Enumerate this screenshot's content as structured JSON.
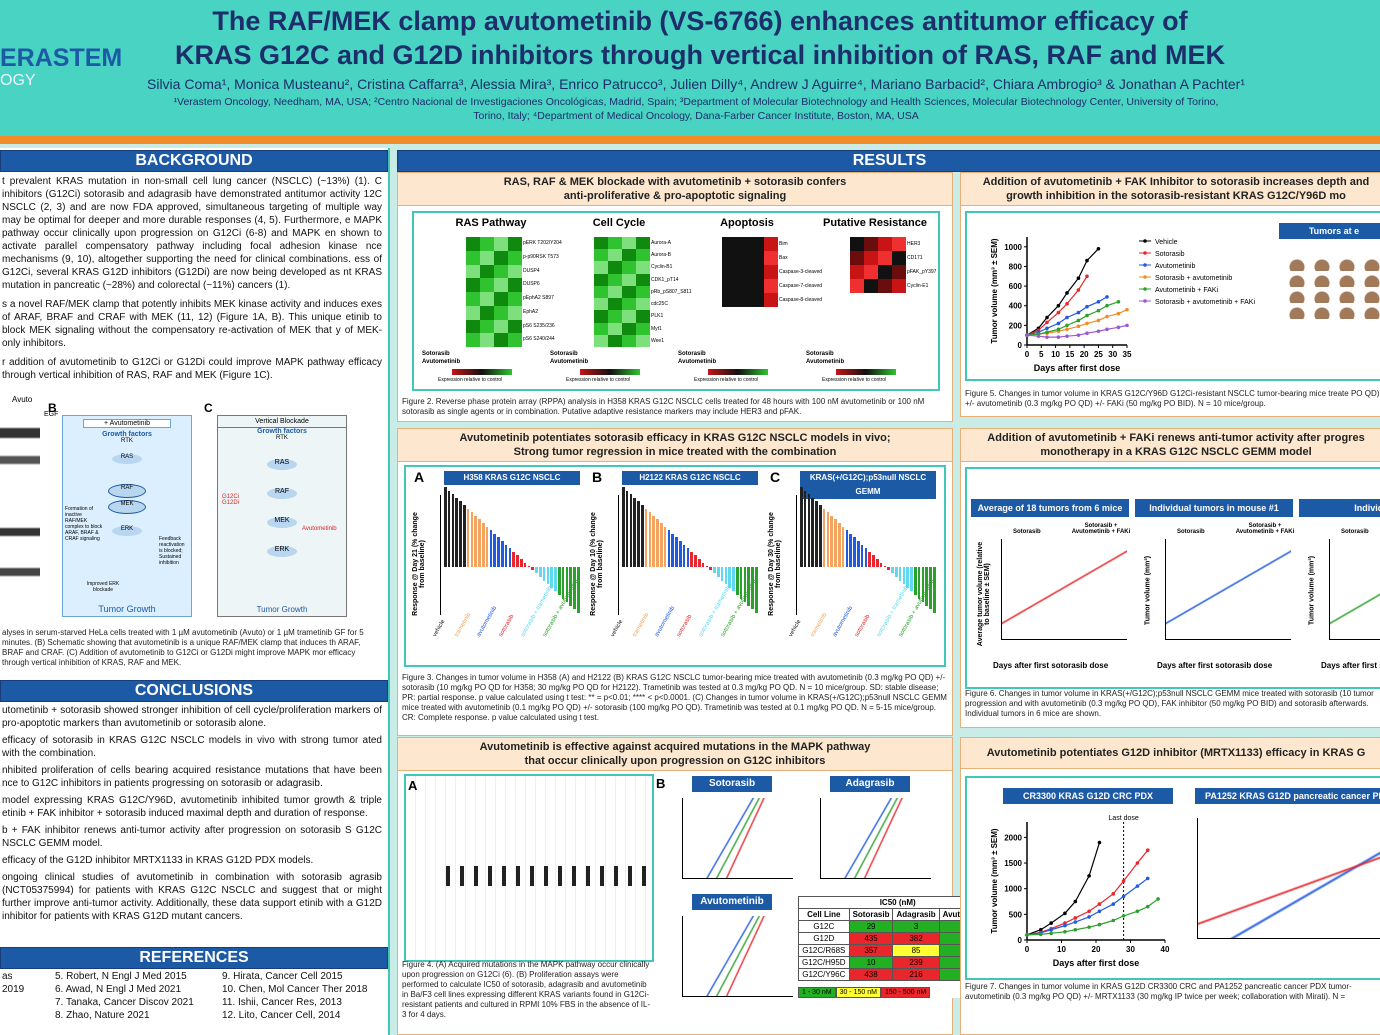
{
  "header": {
    "logo_1": "ERASTEM",
    "logo_2": "OGY",
    "title_1": "The RAF/MEK clamp avutometinib (VS-6766) enhances antitumor efficacy of",
    "title_2": "KRAS G12C and G12D inhibitors through vertical inhibition of RAS, RAF and MEK",
    "authors": "Silvia Coma¹, Monica Musteanu², Cristina Caffarra³, Alessia Mira³, Enrico Patrucco³, Julien Dilly⁴, Andrew J Aguirre⁴, Mariano Barbacid², Chiara Ambrogio³ & Jonathan A Pachter¹",
    "affiliations_1": "¹Verastem Oncology, Needham, MA, USA; ²Centro Nacional de Investigaciones Oncológicas, Madrid, Spain; ³Department of Molecular Biotechnology and Health Sciences, Molecular Biotechnology Center, University of Torino,",
    "affiliations_2": "Torino, Italy; ⁴Department of Medical Oncology, Dana-Farber Cancer Institute, Boston, MA, USA"
  },
  "background": {
    "heading": "BACKGROUND",
    "paragraphs": [
      "t prevalent KRAS mutation in non-small cell lung cancer (NSCLC) (~13%) (1). C inhibitors (G12Ci) sotorasib and adagrasib have demonstrated antitumor activity 12C NSCLC (2, 3) and are now FDA approved, simultaneous targeting of multiple way may be optimal for deeper and more durable responses (4, 5). Furthermore, e MAPK pathway occur clinically upon progression on G12Ci (6-8) and MAPK en shown to activate parallel compensatory pathway including focal adhesion kinase nce mechanisms (9, 10), altogether supporting the need for clinical combinations. ess of G12Ci, several KRAS G12D inhibitors (G12Di) are now being developed as nt KRAS mutation in pancreatic (~28%) and colorectal (~11%) cancers (1).",
      "s a novel RAF/MEK clamp that potently inhibits MEK kinase activity and induces exes of ARAF, BRAF and CRAF with MEK (11, 12) (Figure 1A, B). This unique etinib to block MEK signaling without the compensatory re-activation of MEK that y of MEK-only inhibitors.",
      "r addition of avutometinib to G12Ci or G12Di could improve MAPK pathway efficacy through vertical inhibition of RAS, RAF and MEK (Figure 1C)."
    ]
  },
  "figure1": {
    "label_b": "B",
    "label_c": "C",
    "avuto_col": "Avuto",
    "egf": "EGF",
    "b_title": "+ Avutometinib",
    "growth_factors": "Growth factors",
    "rtk": "RTK",
    "ras": "RAS",
    "raf": "RAF",
    "mek": "MEK",
    "erk": "ERK",
    "complex": "Formation of inactive RAF/MEK complex to block ARAF, BRAF & CRAF signaling",
    "feedback": "Feedback reactivation is blocked; Sustained inhibition",
    "improved": "Improved ERK blockade",
    "tumor_growth": "Tumor Growth",
    "c_title": "Vertical Blockade",
    "inhibitors": "G12Ci G12Di",
    "avutometinib": "Avutometinib",
    "caption": "alyses in serum-starved HeLa cells treated with 1 µM avutometinib (Avuto) or 1 µM trametinib GF for 5 minutes. (B) Schematic showing that avutometinib is a unique RAF/MEK clamp that induces th ARAF, BRAF and CRAF. (C) Addition of avutometinib to G12Ci or G12Di might improve MAPK mor efficacy through vertical inhibition of KRAS, RAF and MEK."
  },
  "conclusions": {
    "heading": "CONCLUSIONS",
    "items": [
      "utometinib + sotorasib showed stronger inhibition of cell cycle/proliferation markers of pro-apoptotic markers than avutometinib or sotorasib alone.",
      "efficacy of sotorasib in KRAS G12C NSCLC models in vivo with strong tumor ated with the combination.",
      "nhibited proliferation of cells bearing acquired resistance mutations that have been nce to G12C inhibitors in patients progressing on sotorasib or adagrasib.",
      "model expressing KRAS G12C/Y96D, avutometinib inhibited tumor growth & triple etinib + FAK inhibitor + sotorasib induced maximal depth and duration of response.",
      "b + FAK inhibitor renews anti-tumor activity after progression on sotorasib S G12C NSCLC GEMM model.",
      "efficacy of the G12D inhibitor MRTX1133 in KRAS G12D PDX models.",
      "ongoing clinical studies of avutometinib in combination with sotorasib agrasib (NCT05375994) for patients with KRAS G12C NSCLC and suggest that or might further improve anti-tumor activity. Additionally, these data support etinib with a G12D inhibitor for patients with KRAS G12D mutant cancers."
    ]
  },
  "references": {
    "heading": "REFERENCES",
    "col_1": [
      "as",
      "2019"
    ],
    "col_2": [
      "5. Robert, N Engl J Med 2015",
      "6. Awad, N Engl J Med 2021",
      "7. Tanaka, Cancer Discov 2021",
      "8. Zhao, Nature 2021"
    ],
    "col_3": [
      "9. Hirata, Cancer Cell 2015",
      "10. Chen, Mol Cancer Ther 2018",
      "11. Ishii, Cancer Res, 2013",
      "12. Lito, Cancer Cell, 2014"
    ]
  },
  "results": {
    "heading": "RESULTS"
  },
  "fig2": {
    "title_1": "RAS, RAF & MEK blockade with avutometinib + sotorasib confers",
    "title_2": "anti-proliferative & pro-apoptotic signaling",
    "panels": [
      {
        "name": "RAS Pathway",
        "markers": [
          "pERK T202/Y204",
          "p-p90RSK T573",
          "DUSP4",
          "DUSP6",
          "pEphA2 S897",
          "EphA2",
          "pS6 S235/236",
          "pS6 S240/244"
        ]
      },
      {
        "name": "Cell Cycle",
        "markers": [
          "Aurora-A",
          "Aurora-B",
          "Cyclin-B1",
          "CDK1_pT14",
          "pRb_pS807_S811",
          "cdc25C",
          "PLK1",
          "Myt1",
          "Wee1"
        ]
      },
      {
        "name": "Apoptosis",
        "markers": [
          "Bim",
          "Bax",
          "Caspase-3-cleaved",
          "Caspase-7-cleaved",
          "Caspase-8-cleaved"
        ]
      },
      {
        "name": "Putative Resistance",
        "markers": [
          "HER3",
          "CD171",
          "pFAK_pY397",
          "Cyclin-E1"
        ]
      }
    ],
    "row_sotorasib": "Sotorasib",
    "row_avutometinib": "Avutometinib",
    "scale_label": "Expression relative to control",
    "caption": "Figure 2. Reverse phase protein array (RPPA) analysis in H358 KRAS G12C NSCLC cells treated for 48 hours with 100 nM avutometinib or 100 nM sotorasib as single agents or in combination. Putative adaptive resistance markers may include HER3 and pFAK."
  },
  "fig3": {
    "title_1": "Avutometinib potentiates sotorasib efficacy in KRAS G12C NSCLC models in vivo;",
    "title_2": "Strong tumor regression in mice treated with the combination",
    "panels": [
      {
        "letter": "A",
        "name": "H358 KRAS G12C NSCLC",
        "ylabel": "Response @ Day 21 (% change from baseline)"
      },
      {
        "letter": "B",
        "name": "H2122 KRAS G12C NSCLC",
        "ylabel": "Response @ Day 10 (% change from baseline)"
      },
      {
        "letter": "C",
        "name": "KRAS(+/G12C);p53null NSCLC GEMM",
        "ylabel": "Response @ Day 30 (% change from baseline)"
      }
    ],
    "groups": [
      "vehicle",
      "trametinib",
      "avutometinib",
      "sotorasib",
      "sotorasib + trametinib",
      "sotorasib + avutometinib"
    ],
    "caption": "Figure 3. Changes in tumor volume in H358 (A) and H2122 (B) KRAS G12C NSCLC tumor-bearing mice treated with avutometinib (0.3 mg/kg PO QD) +/- sotorasib (10 mg/kg PO QD for H358; 30 mg/kg PO QD for H2122). Trametinib was tested at 0.3 mg/kg PO QD. N = 10 mice/group. SD: stable disease; PR: partial response. p value calculated using t test: ** = p<0.01; **** < p<0.0001. (C) Changes in tumor volume in KRAS(+/G12C);p53null NSCLC GEMM mice treated with avutometinib (0.1 mg/kg PO QD) +/- sotorasib (100 mg/kg PO QD). Trametinib was tested at 0.1 mg/kg PO QD. N = 5-15 mice/group. CR: Complete response. p value calculated using t test."
  },
  "fig4": {
    "title_1": "Avutometinib is effective against acquired mutations in the MAPK pathway",
    "title_2": "that occur clinically upon progression on G12C inhibitors",
    "letter_a": "A",
    "letter_b": "B",
    "drugs": [
      "Sotorasib",
      "Adagrasib",
      "Avutometinib"
    ],
    "ic50": {
      "title": "IC50 (nM)",
      "header": [
        "Cell Line",
        "Sotorasib",
        "Adagrasib",
        "Avutometinib"
      ],
      "rows": [
        [
          "G12C",
          29,
          3,
          14
        ],
        [
          "G12D",
          435,
          382,
          7
        ],
        [
          "G12C/R68S",
          357,
          85,
          13
        ],
        [
          "G12C/H95D",
          10,
          239,
          10
        ],
        [
          "G12C/Y96C",
          438,
          216,
          4
        ]
      ],
      "legend": [
        "1 - 30 nM",
        "30 - 150 nM",
        "150 - 500 nM"
      ]
    },
    "caption": "Figure 4. (A) Acquired mutations in the MAPK pathway occur clinically upon progression on G12Ci (6). (B) Proliferation assays were performed to calculate IC50 of sotorasib, adagrasib and avutometinib in Ba/F3 cell lines expressing different KRAS variants found in G12Ci-resistant patients and cultured in RPMI 10% FBS in the absence of IL-3 for 4 days."
  },
  "fig5": {
    "title_1": "Addition of avutometinib + FAK Inhibitor to sotorasib increases depth and",
    "title_2": "growth inhibition in the sotorasib-resistant KRAS G12C/Y96D mo",
    "tumors_title": "Tumors at e",
    "chart": {
      "type": "line",
      "xlabel": "Days after first dose",
      "ylabel": "Tumor volume (mm³ ± SEM)",
      "x": [
        0,
        4,
        7,
        11,
        14,
        18,
        21,
        25,
        28,
        32,
        35
      ],
      "xlim": [
        0,
        35
      ],
      "xticks": [
        0,
        5,
        10,
        15,
        20,
        25,
        30,
        35
      ],
      "ylim": [
        0,
        1100
      ],
      "yticks": [
        0,
        200,
        400,
        600,
        800,
        1000
      ],
      "series": [
        {
          "name": "Vehicle",
          "color": "#000000",
          "values": [
            100,
            170,
            280,
            400,
            530,
            680,
            860,
            980,
            null,
            null,
            null
          ]
        },
        {
          "name": "Sotorasib",
          "color": "#e8262b",
          "values": [
            100,
            150,
            230,
            330,
            420,
            560,
            700,
            null,
            null,
            null,
            null
          ]
        },
        {
          "name": "Avutometinib",
          "color": "#1f5ae0",
          "values": [
            100,
            130,
            170,
            220,
            280,
            330,
            390,
            440,
            490,
            null,
            null
          ]
        },
        {
          "name": "Sotorasib + avutometinib",
          "color": "#f28c28",
          "values": [
            100,
            110,
            120,
            140,
            160,
            190,
            220,
            250,
            290,
            320,
            360
          ]
        },
        {
          "name": "Avutometinib + FAKi",
          "color": "#2ca02c",
          "values": [
            100,
            110,
            130,
            160,
            200,
            250,
            300,
            350,
            400,
            440,
            null
          ]
        },
        {
          "name": "Sotorasib + avutometinib + FAKi",
          "color": "#9b59d0",
          "values": [
            100,
            90,
            80,
            80,
            90,
            100,
            120,
            140,
            160,
            180,
            200
          ]
        }
      ]
    },
    "caption": "Figure 5. Changes in tumor volume in KRAS G12C/Y96D G12Ci-resistant NSCLC tumor-bearing mice treate PO QD) +/- avutometinib (0.3 mg/kg PO QD) +/- FAKi (50 mg/kg PO BID). N = 10 mice/group."
  },
  "fig6": {
    "title_1": "Addition of avutometinib + FAKi renews anti-tumor activity after progres",
    "title_2": "monotherapy in a KRAS G12C NSCLC GEMM model",
    "panels": [
      {
        "name": "Average of 18 tumors from 6 mice",
        "ylabel": "Average tumor volume (relative to baseline ± SEM)"
      },
      {
        "name": "Individual tumors in mouse #1",
        "ylabel": "Tumor volume (mm³)"
      },
      {
        "name": "Individual t",
        "ylabel": "Tumor volume (mm³)"
      }
    ],
    "phase_1": "Sotorasib",
    "phase_2": "Sotorasib + Avutometinib + FAKi",
    "xlabel": "Days after first sotorasib dose",
    "caption": "Figure 6. Changes in tumor volume in KRAS(+/G12C);p53null NSCLC GEMM mice treated with sotorasib (10 tumor progression and with avutometinib (0.3 mg/kg PO QD), FAK inhibitor (50 mg/kg PO BID) and sotorasib afterwards. Individual tumors in 6 mice are shown."
  },
  "fig7": {
    "title": "Avutometinib potentiates G12D inhibitor (MRTX1133) efficacy in KRAS G",
    "panel_1": "CR3300 KRAS G12D CRC PDX",
    "panel_2": "PA1252 KRAS G12D pancreatic cancer PD",
    "chart": {
      "type": "line",
      "xlabel": "Days after first dose",
      "ylabel": "Tumor volume (mm³ ± SEM)",
      "x": [
        0,
        4,
        7,
        11,
        14,
        18,
        21,
        25,
        28,
        32,
        35,
        38
      ],
      "xlim": [
        0,
        40
      ],
      "xticks": [
        0,
        10,
        20,
        30,
        40
      ],
      "ylim": [
        0,
        2300
      ],
      "yticks": [
        0,
        500,
        1000,
        1500,
        2000
      ],
      "annotation": {
        "x": 28,
        "text": "Last dose"
      },
      "series": [
        {
          "color": "#000000",
          "values": [
            100,
            200,
            330,
            520,
            750,
            1250,
            1900,
            null,
            null,
            null,
            null,
            null
          ]
        },
        {
          "color": "#e8262b",
          "values": [
            100,
            150,
            220,
            330,
            430,
            560,
            700,
            900,
            1150,
            1500,
            1750,
            null
          ]
        },
        {
          "color": "#1f5ae0",
          "values": [
            100,
            140,
            200,
            280,
            350,
            450,
            560,
            700,
            850,
            1050,
            1200,
            null
          ]
        },
        {
          "color": "#2ca02c",
          "values": [
            100,
            110,
            130,
            160,
            200,
            250,
            300,
            380,
            470,
            560,
            650,
            800
          ]
        }
      ]
    },
    "caption": "Figure 7. Changes in tumor volume in KRAS G12D CR3300 CRC and PA1252 pancreatic cancer PDX tumor- avutometinib (0.3 mg/kg PO QD) +/- MRTX1133 (30 mg/kg IP twice per week; collaboration with Mirati). N ="
  }
}
